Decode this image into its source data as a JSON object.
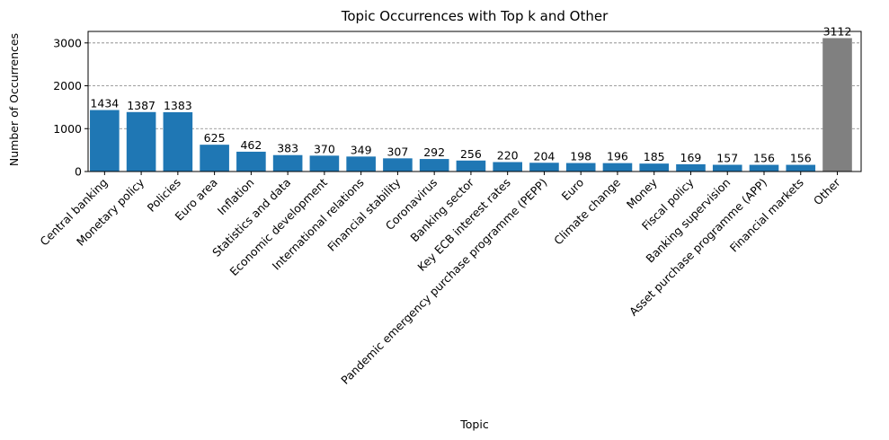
{
  "chart_data": {
    "type": "bar",
    "title": "Topic Occurrences with Top k and Other",
    "xlabel": "Topic",
    "ylabel": "Number of Occurrences",
    "ylim": [
      0,
      3268
    ],
    "yticks": [
      0,
      1000,
      2000,
      3000
    ],
    "grid": "y-dashed",
    "categories": [
      "Central banking",
      "Monetary policy",
      "Policies",
      "Euro area",
      "Inflation",
      "Statistics and data",
      "Economic development",
      "International relations",
      "Financial stability",
      "Coronavirus",
      "Banking sector",
      "Key ECB interest rates",
      "Pandemic emergency purchase programme (PEPP)",
      "Euro",
      "Climate change",
      "Money",
      "Fiscal policy",
      "Banking supervision",
      "Asset purchase programme (APP)",
      "Financial markets",
      "Other"
    ],
    "values": [
      1434,
      1387,
      1383,
      625,
      462,
      383,
      370,
      349,
      307,
      292,
      256,
      220,
      204,
      198,
      196,
      185,
      169,
      157,
      156,
      156,
      3112
    ],
    "colors": {
      "default": "#1f77b4",
      "other": "#808080"
    }
  }
}
